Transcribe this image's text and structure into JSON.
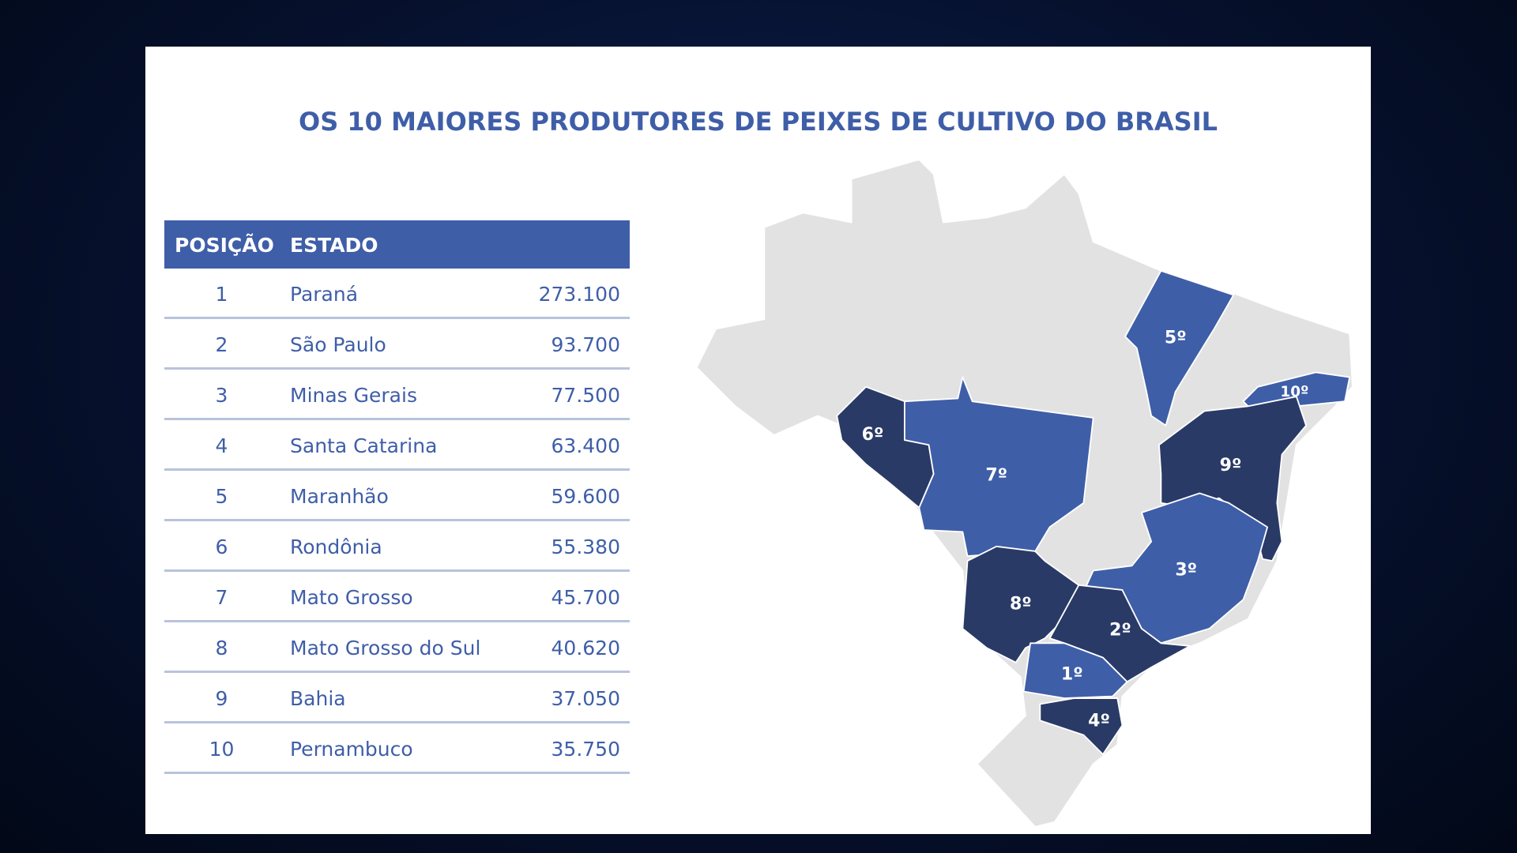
{
  "header": {
    "title": "OS 10 MAIORES PRODUTORES DE PEIXES DE CULTIVO DO BRASIL"
  },
  "table": {
    "header": [
      "POSIÇÃO",
      "ESTADO"
    ],
    "rows": [
      [
        "1",
        "Paraná",
        "273.100"
      ],
      [
        "2",
        "São Paulo",
        "93.700"
      ],
      [
        "3",
        "Minas Gerais",
        "77.500"
      ],
      [
        "4",
        "Santa Catarina",
        "63.400"
      ],
      [
        "5",
        "Maranhão",
        "59.600"
      ],
      [
        "6",
        "Rondônia",
        "55.380"
      ],
      [
        "7",
        "Mato Grosso",
        "45.700"
      ],
      [
        "8",
        "Mato Grosso do Sul",
        "40.620"
      ],
      [
        "9",
        "Bahia",
        "37.050"
      ],
      [
        "10",
        "Pernambuco",
        "35.750"
      ]
    ]
  },
  "map": {
    "labels": [
      "1º",
      "2º",
      "3º",
      "4º",
      "5º",
      "6º",
      "7º",
      "8º",
      "9º",
      "10º"
    ]
  }
}
